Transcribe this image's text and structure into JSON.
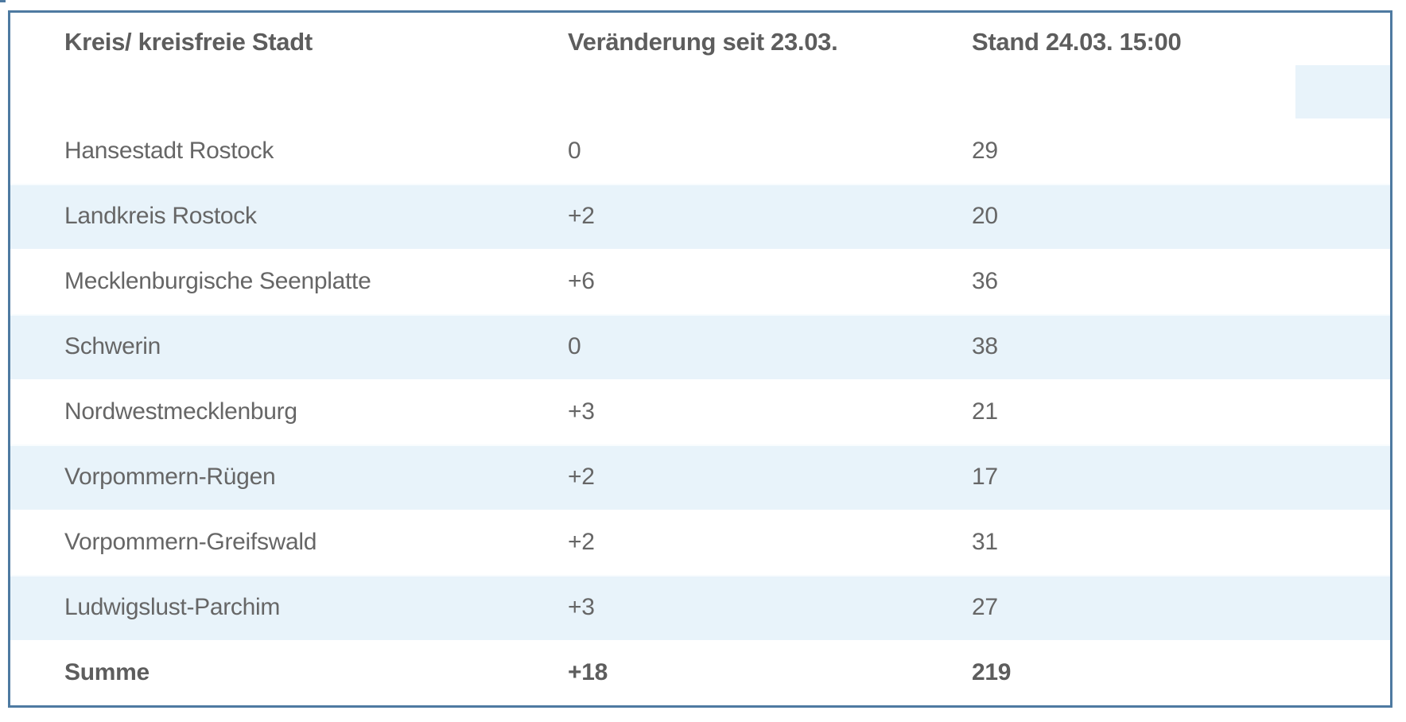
{
  "chart_data": {
    "type": "table",
    "columns": [
      {
        "label": "Kreis/ kreisfreie Stadt"
      },
      {
        "label": "Veränderung seit 23.03."
      },
      {
        "label": "Stand 24.03. 15:00"
      },
      {
        "label": ""
      }
    ],
    "rows": [
      {
        "kreis": "Hansestadt Rostock",
        "veraenderung": "0",
        "stand": "29"
      },
      {
        "kreis": "Landkreis Rostock",
        "veraenderung": "+2",
        "stand": "20"
      },
      {
        "kreis": "Mecklenburgische Seenplatte",
        "veraenderung": "+6",
        "stand": "36"
      },
      {
        "kreis": "Schwerin",
        "veraenderung": "0",
        "stand": "38"
      },
      {
        "kreis": "Nordwestmecklenburg",
        "veraenderung": "+3",
        "stand": "21"
      },
      {
        "kreis": "Vorpommern-Rügen",
        "veraenderung": "+2",
        "stand": "17"
      },
      {
        "kreis": "Vorpommern-Greifswald",
        "veraenderung": "+2",
        "stand": "31"
      },
      {
        "kreis": "Ludwigslust-Parchim",
        "veraenderung": "+3",
        "stand": "27"
      }
    ],
    "sum_row": {
      "kreis": "Summe",
      "veraenderung": "+18",
      "stand": "219"
    },
    "layout": {
      "stripe_pattern": "alternating starting white, Summe row white bold",
      "grid": "off",
      "legend": "none"
    }
  },
  "colors": {
    "stripe": "#e8f3fa",
    "border": "#4e7aa1",
    "text": "#666666",
    "heading_text": "#5d5d5d"
  }
}
